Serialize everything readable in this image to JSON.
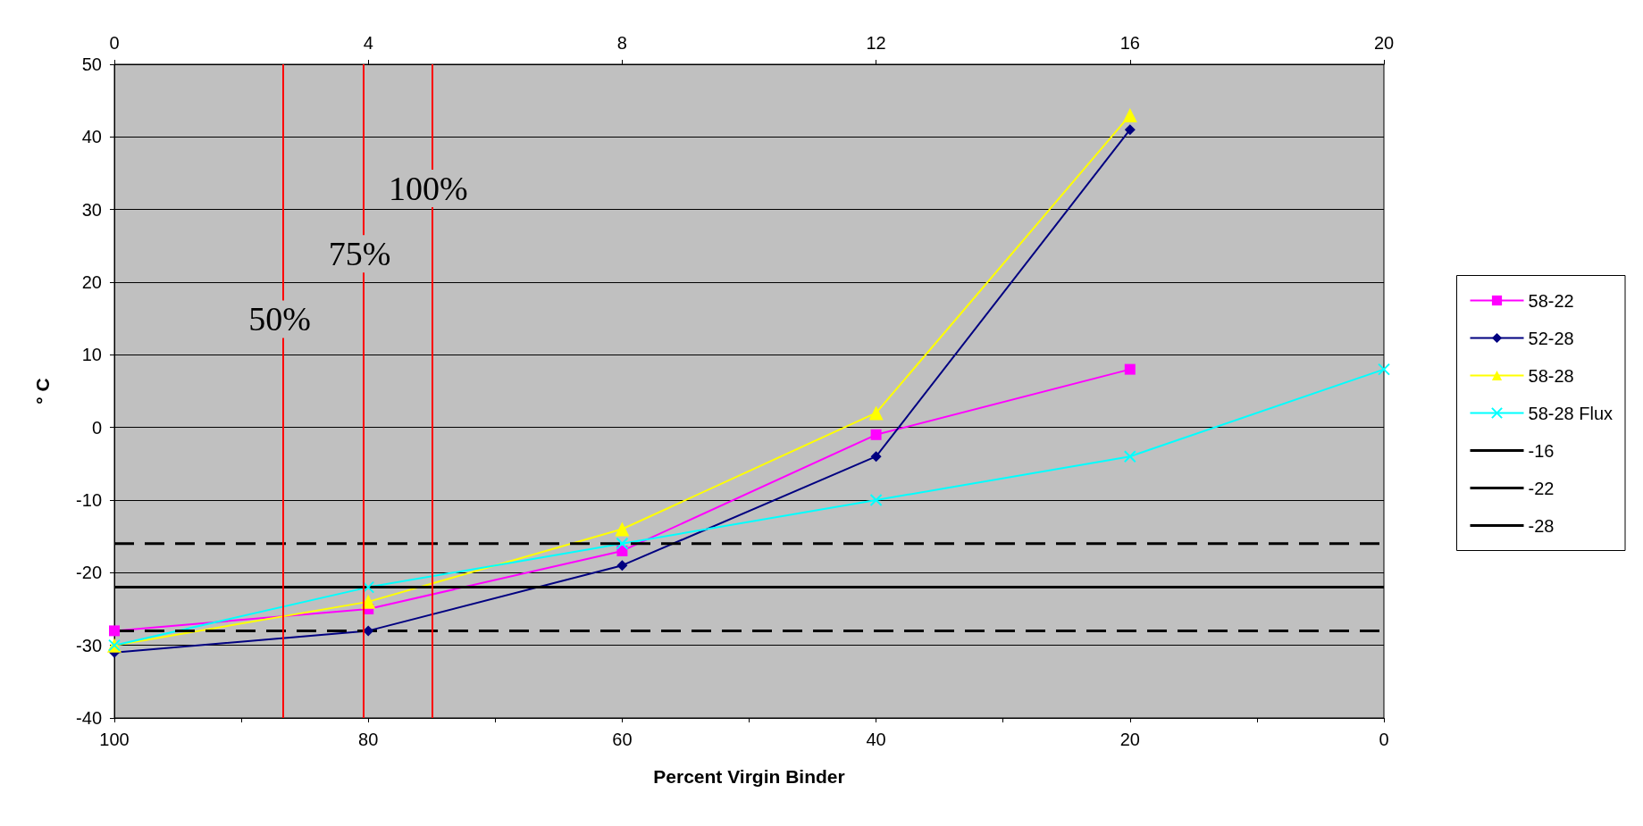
{
  "chart_data": {
    "type": "line",
    "xlabel": "Percent Virgin Binder",
    "ylabel": "° C",
    "x": [
      100,
      80,
      60,
      40,
      20,
      0
    ],
    "xlim": [
      100,
      0
    ],
    "xticks": [
      100,
      {
        "value": 90,
        "label": null
      },
      80,
      {
        "value": 70,
        "label": null
      },
      60,
      {
        "value": 50,
        "label": null
      },
      40,
      {
        "value": 30,
        "label": null
      },
      20,
      {
        "value": 10,
        "label": null
      },
      0
    ],
    "x2lim": [
      0,
      20
    ],
    "x2ticks": [
      0,
      4,
      8,
      12,
      16,
      20
    ],
    "ylim": [
      -40,
      50
    ],
    "yticks": [
      -40,
      -30,
      -20,
      -10,
      0,
      10,
      20,
      30,
      40,
      50
    ],
    "grid": "y",
    "legend": "right",
    "series": [
      {
        "name": "58-22",
        "color": "#ff00ff",
        "marker": "square",
        "values": [
          -28,
          -25,
          -17,
          -1,
          8,
          null
        ]
      },
      {
        "name": "52-28",
        "color": "#000080",
        "marker": "diamond",
        "values": [
          -31,
          -28,
          -19,
          -4,
          41,
          null
        ]
      },
      {
        "name": "58-28",
        "color": "#ffff00",
        "marker": "triangle",
        "values": [
          -30,
          -24,
          -14,
          2,
          43,
          null
        ]
      },
      {
        "name": "58-28 Flux",
        "color": "#00ffff",
        "marker": "cross",
        "values": [
          -30,
          -22,
          -16,
          -10,
          -4,
          8
        ]
      },
      {
        "name": "-16",
        "color": "#000000",
        "marker": "none",
        "line_style": "dashed",
        "values": [
          -16,
          -16,
          -16,
          -16,
          -16,
          -16
        ]
      },
      {
        "name": "-22",
        "color": "#000000",
        "marker": "none",
        "line_style": "solid",
        "values": [
          -22,
          -22,
          -22,
          -22,
          -22,
          -22
        ]
      },
      {
        "name": "-28",
        "color": "#000000",
        "marker": "none",
        "line_style": "dashed",
        "values": [
          -28,
          -28,
          -28,
          -28,
          -28,
          -28
        ]
      }
    ],
    "ref_lines": [
      {
        "axis": "x",
        "value": 86.7,
        "color": "#ff0000"
      },
      {
        "axis": "x",
        "value": 80.4,
        "color": "#ff0000"
      },
      {
        "axis": "x",
        "value": 75,
        "color": "#ff0000"
      }
    ],
    "annotations": [
      "50%",
      "75%",
      "100%"
    ]
  }
}
